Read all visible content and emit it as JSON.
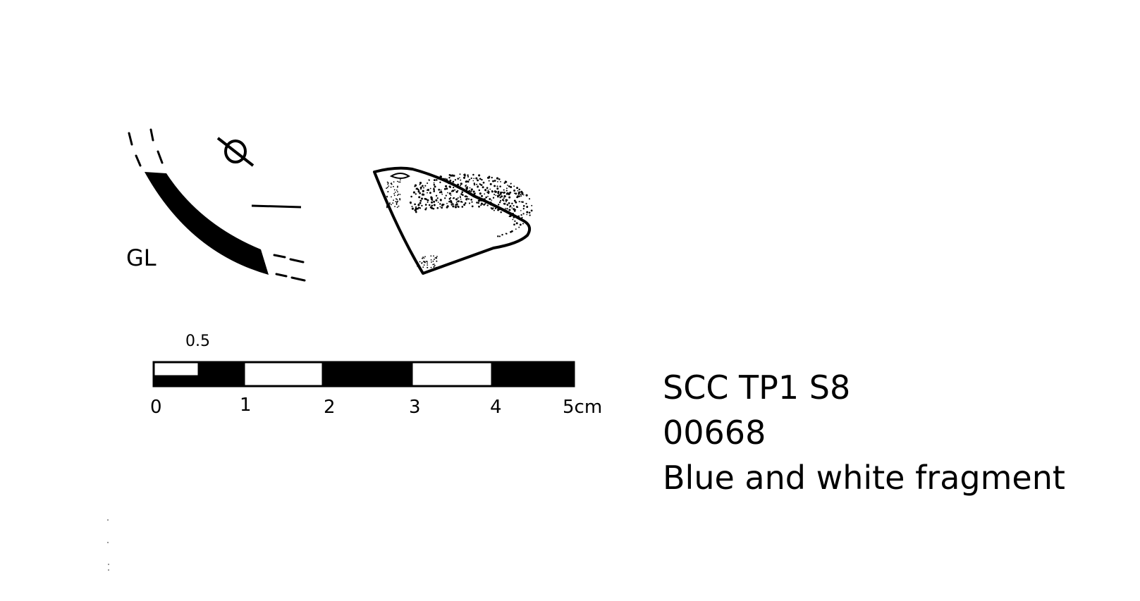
{
  "profile": {
    "label": "GL",
    "diameter_symbol": "Ø"
  },
  "scale_bar": {
    "half_label": "0.5",
    "ticks": [
      "0",
      "1",
      "2",
      "3",
      "4",
      "5cm"
    ]
  },
  "caption": {
    "line1": "SCC TP1 S8",
    "line2": "00668",
    "line3": "Blue and white fragment"
  },
  "colors": {
    "ink": "#000000",
    "paper": "#ffffff"
  }
}
